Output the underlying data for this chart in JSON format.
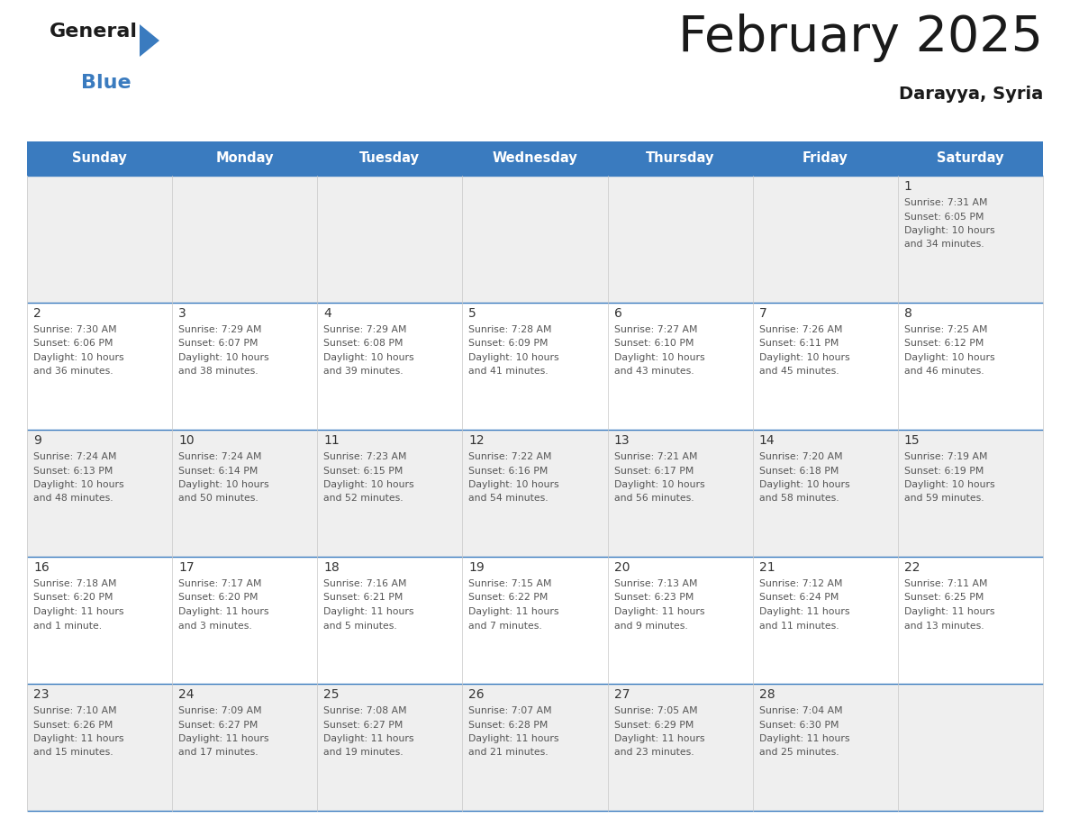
{
  "title": "February 2025",
  "subtitle": "Darayya, Syria",
  "days_of_week": [
    "Sunday",
    "Monday",
    "Tuesday",
    "Wednesday",
    "Thursday",
    "Friday",
    "Saturday"
  ],
  "header_bg": "#3a7bbf",
  "header_text": "#ffffff",
  "row_bg_odd": "#efefef",
  "row_bg_even": "#ffffff",
  "separator_color": "#3a7bbf",
  "day_number_color": "#333333",
  "text_color": "#555555",
  "title_color": "#1a1a1a",
  "subtitle_color": "#1a1a1a",
  "vline_color": "#c8c8c8",
  "calendar_data": [
    {
      "day": 1,
      "col": 6,
      "row": 0,
      "sunrise": "7:31 AM",
      "sunset": "6:05 PM",
      "daylight": "10 hours and 34 minutes."
    },
    {
      "day": 2,
      "col": 0,
      "row": 1,
      "sunrise": "7:30 AM",
      "sunset": "6:06 PM",
      "daylight": "10 hours and 36 minutes."
    },
    {
      "day": 3,
      "col": 1,
      "row": 1,
      "sunrise": "7:29 AM",
      "sunset": "6:07 PM",
      "daylight": "10 hours and 38 minutes."
    },
    {
      "day": 4,
      "col": 2,
      "row": 1,
      "sunrise": "7:29 AM",
      "sunset": "6:08 PM",
      "daylight": "10 hours and 39 minutes."
    },
    {
      "day": 5,
      "col": 3,
      "row": 1,
      "sunrise": "7:28 AM",
      "sunset": "6:09 PM",
      "daylight": "10 hours and 41 minutes."
    },
    {
      "day": 6,
      "col": 4,
      "row": 1,
      "sunrise": "7:27 AM",
      "sunset": "6:10 PM",
      "daylight": "10 hours and 43 minutes."
    },
    {
      "day": 7,
      "col": 5,
      "row": 1,
      "sunrise": "7:26 AM",
      "sunset": "6:11 PM",
      "daylight": "10 hours and 45 minutes."
    },
    {
      "day": 8,
      "col": 6,
      "row": 1,
      "sunrise": "7:25 AM",
      "sunset": "6:12 PM",
      "daylight": "10 hours and 46 minutes."
    },
    {
      "day": 9,
      "col": 0,
      "row": 2,
      "sunrise": "7:24 AM",
      "sunset": "6:13 PM",
      "daylight": "10 hours and 48 minutes."
    },
    {
      "day": 10,
      "col": 1,
      "row": 2,
      "sunrise": "7:24 AM",
      "sunset": "6:14 PM",
      "daylight": "10 hours and 50 minutes."
    },
    {
      "day": 11,
      "col": 2,
      "row": 2,
      "sunrise": "7:23 AM",
      "sunset": "6:15 PM",
      "daylight": "10 hours and 52 minutes."
    },
    {
      "day": 12,
      "col": 3,
      "row": 2,
      "sunrise": "7:22 AM",
      "sunset": "6:16 PM",
      "daylight": "10 hours and 54 minutes."
    },
    {
      "day": 13,
      "col": 4,
      "row": 2,
      "sunrise": "7:21 AM",
      "sunset": "6:17 PM",
      "daylight": "10 hours and 56 minutes."
    },
    {
      "day": 14,
      "col": 5,
      "row": 2,
      "sunrise": "7:20 AM",
      "sunset": "6:18 PM",
      "daylight": "10 hours and 58 minutes."
    },
    {
      "day": 15,
      "col": 6,
      "row": 2,
      "sunrise": "7:19 AM",
      "sunset": "6:19 PM",
      "daylight": "10 hours and 59 minutes."
    },
    {
      "day": 16,
      "col": 0,
      "row": 3,
      "sunrise": "7:18 AM",
      "sunset": "6:20 PM",
      "daylight": "11 hours and 1 minute."
    },
    {
      "day": 17,
      "col": 1,
      "row": 3,
      "sunrise": "7:17 AM",
      "sunset": "6:20 PM",
      "daylight": "11 hours and 3 minutes."
    },
    {
      "day": 18,
      "col": 2,
      "row": 3,
      "sunrise": "7:16 AM",
      "sunset": "6:21 PM",
      "daylight": "11 hours and 5 minutes."
    },
    {
      "day": 19,
      "col": 3,
      "row": 3,
      "sunrise": "7:15 AM",
      "sunset": "6:22 PM",
      "daylight": "11 hours and 7 minutes."
    },
    {
      "day": 20,
      "col": 4,
      "row": 3,
      "sunrise": "7:13 AM",
      "sunset": "6:23 PM",
      "daylight": "11 hours and 9 minutes."
    },
    {
      "day": 21,
      "col": 5,
      "row": 3,
      "sunrise": "7:12 AM",
      "sunset": "6:24 PM",
      "daylight": "11 hours and 11 minutes."
    },
    {
      "day": 22,
      "col": 6,
      "row": 3,
      "sunrise": "7:11 AM",
      "sunset": "6:25 PM",
      "daylight": "11 hours and 13 minutes."
    },
    {
      "day": 23,
      "col": 0,
      "row": 4,
      "sunrise": "7:10 AM",
      "sunset": "6:26 PM",
      "daylight": "11 hours and 15 minutes."
    },
    {
      "day": 24,
      "col": 1,
      "row": 4,
      "sunrise": "7:09 AM",
      "sunset": "6:27 PM",
      "daylight": "11 hours and 17 minutes."
    },
    {
      "day": 25,
      "col": 2,
      "row": 4,
      "sunrise": "7:08 AM",
      "sunset": "6:27 PM",
      "daylight": "11 hours and 19 minutes."
    },
    {
      "day": 26,
      "col": 3,
      "row": 4,
      "sunrise": "7:07 AM",
      "sunset": "6:28 PM",
      "daylight": "11 hours and 21 minutes."
    },
    {
      "day": 27,
      "col": 4,
      "row": 4,
      "sunrise": "7:05 AM",
      "sunset": "6:29 PM",
      "daylight": "11 hours and 23 minutes."
    },
    {
      "day": 28,
      "col": 5,
      "row": 4,
      "sunrise": "7:04 AM",
      "sunset": "6:30 PM",
      "daylight": "11 hours and 25 minutes."
    }
  ],
  "num_rows": 5,
  "num_cols": 7,
  "figw": 11.88,
  "figh": 9.18,
  "dpi": 100
}
